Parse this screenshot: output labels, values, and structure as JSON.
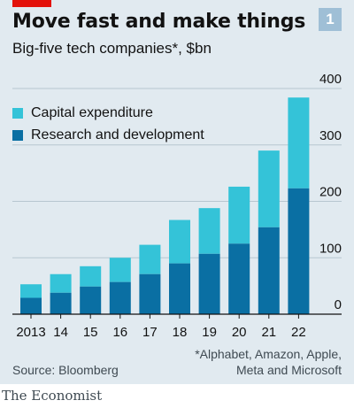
{
  "header": {
    "title": "Move fast and make things",
    "subtitle": "Big-five tech companies*, $bn",
    "chart_number": "1"
  },
  "footer": {
    "source": "Source: Bloomberg",
    "footnote_line1": "*Alphabet, Amazon, Apple,",
    "footnote_line2": "Meta and Microsoft",
    "brand": "The Economist"
  },
  "colors": {
    "capex": "#34c3d8",
    "rnd": "#0a6fa3",
    "background": "#e1eaf0",
    "accent_red": "#e3120b"
  },
  "chart_data": {
    "type": "bar",
    "stacked": true,
    "title": "Move fast and make things",
    "subtitle": "Big-five tech companies*, $bn",
    "categories": [
      "2013",
      "14",
      "15",
      "16",
      "17",
      "18",
      "19",
      "20",
      "21",
      "22"
    ],
    "series": [
      {
        "name": "Research and development",
        "color": "#0a6fa3",
        "values": [
          29,
          38,
          49,
          57,
          71,
          90,
          107,
          125,
          154,
          223
        ]
      },
      {
        "name": "Capital expenditure",
        "color": "#34c3d8",
        "values": [
          24,
          33,
          36,
          43,
          52,
          77,
          81,
          101,
          136,
          161
        ]
      }
    ],
    "ylim": [
      0,
      400
    ],
    "yticks": [
      0,
      100,
      200,
      300,
      400
    ],
    "y_axis_side": "right",
    "grid": true,
    "legend": [
      "Capital expenditure",
      "Research and development"
    ],
    "legend_placement": "top-left"
  }
}
